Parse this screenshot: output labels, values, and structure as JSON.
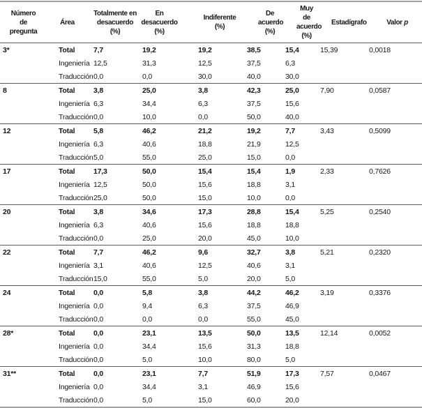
{
  "table": {
    "headers": {
      "question": "Número\nde\npregunta",
      "area": "Área",
      "cols": [
        "Totalmente en\ndesacuerdo\n(%)",
        "En\ndesacuerdo\n(%)",
        "Indiferente\n(%)",
        "De acuerdo\n(%)",
        "Muy de\nacuerdo\n(%)"
      ],
      "statistic": "Estadígrafo",
      "p_prefix": "Valor ",
      "p_symbol": "p"
    },
    "groups": [
      {
        "question": "3*",
        "rows": [
          {
            "area": "Total",
            "values": [
              "7,7",
              "19,2",
              "19,2",
              "38,5",
              "15,4"
            ],
            "statistic": "15,39",
            "p_value": "0,0018"
          },
          {
            "area": "Ingeniería",
            "values": [
              "12,5",
              "31,3",
              "12,5",
              "37,5",
              "6,3"
            ]
          },
          {
            "area": "Traducción",
            "values": [
              "0,0",
              "0,0",
              "30,0",
              "40,0",
              "30,0"
            ]
          }
        ]
      },
      {
        "question": "8",
        "rows": [
          {
            "area": "Total",
            "values": [
              "3,8",
              "25,0",
              "3,8",
              "42,3",
              "25,0"
            ],
            "statistic": "7,90",
            "p_value": "0,0587"
          },
          {
            "area": "Ingeniería",
            "values": [
              "6,3",
              "34,4",
              "6,3",
              "37,5",
              "15,6"
            ]
          },
          {
            "area": "Traducción",
            "values": [
              "0,0",
              "10,0",
              "0,0",
              "50,0",
              "40,0"
            ]
          }
        ]
      },
      {
        "question": "12",
        "rows": [
          {
            "area": "Total",
            "values": [
              "5,8",
              "46,2",
              "21,2",
              "19,2",
              "7,7"
            ],
            "statistic": "3,43",
            "p_value": "0,5099"
          },
          {
            "area": "Ingeniería",
            "values": [
              "6,3",
              "40,6",
              "18,8",
              "21,9",
              "12,5"
            ]
          },
          {
            "area": "Traducción",
            "values": [
              "5,0",
              "55,0",
              "25,0",
              "15,0",
              "0,0"
            ]
          }
        ]
      },
      {
        "question": "17",
        "rows": [
          {
            "area": "Total",
            "values": [
              "17,3",
              "50,0",
              "15,4",
              "15,4",
              "1,9"
            ],
            "statistic": "2,33",
            "p_value": "0,7626"
          },
          {
            "area": "Ingeniería",
            "values": [
              "12,5",
              "50,0",
              "15,6",
              "18,8",
              "3,1"
            ]
          },
          {
            "area": "Traducción",
            "values": [
              "25,0",
              "50,0",
              "15,0",
              "10,0",
              "0,0"
            ]
          }
        ]
      },
      {
        "question": "20",
        "rows": [
          {
            "area": "Total",
            "values": [
              "3,8",
              "34,6",
              "17,3",
              "28,8",
              "15,4"
            ],
            "statistic": "5,25",
            "p_value": "0,2540"
          },
          {
            "area": "Ingeniería",
            "values": [
              "6,3",
              "40,6",
              "15,6",
              "18,8",
              "18,8"
            ]
          },
          {
            "area": "Traducción",
            "values": [
              "0,0",
              "25,0",
              "20,0",
              "45,0",
              "10,0"
            ]
          }
        ]
      },
      {
        "question": "22",
        "rows": [
          {
            "area": "Total",
            "values": [
              "7,7",
              "46,2",
              "9,6",
              "32,7",
              "3,8"
            ],
            "statistic": "5,21",
            "p_value": "0,2320"
          },
          {
            "area": "Ingeniería",
            "values": [
              "3,1",
              "40,6",
              "12,5",
              "40,6",
              "3,1"
            ]
          },
          {
            "area": "Traducción",
            "values": [
              "15,0",
              "55,0",
              "5,0",
              "20,0",
              "5,0"
            ]
          }
        ]
      },
      {
        "question": "24",
        "rows": [
          {
            "area": "Total",
            "values": [
              "0,0",
              "5,8",
              "3,8",
              "44,2",
              "46,2"
            ],
            "statistic": "3,19",
            "p_value": "0,3376"
          },
          {
            "area": "Ingeniería",
            "values": [
              "0,0",
              "9,4",
              "6,3",
              "37,5",
              "46,9"
            ]
          },
          {
            "area": "Traducción",
            "values": [
              "0,0",
              "0,0",
              "0,0",
              "55,0",
              "45,0"
            ]
          }
        ]
      },
      {
        "question": "28*",
        "rows": [
          {
            "area": "Total",
            "values": [
              "0,0",
              "23,1",
              "13,5",
              "50,0",
              "13,5"
            ],
            "statistic": "12,14",
            "p_value": "0,0052"
          },
          {
            "area": "Ingeniería",
            "values": [
              "0,0",
              "34,4",
              "15,6",
              "31,3",
              "18,8"
            ]
          },
          {
            "area": "Traducción",
            "values": [
              "0,0",
              "5,0",
              "10,0",
              "80,0",
              "5,0"
            ]
          }
        ]
      },
      {
        "question": "31**",
        "rows": [
          {
            "area": "Total",
            "values": [
              "0,0",
              "23,1",
              "7,7",
              "51,9",
              "17,3"
            ],
            "statistic": "7,57",
            "p_value": "0,0467"
          },
          {
            "area": "Ingeniería",
            "values": [
              "0,0",
              "34,4",
              "3,1",
              "46,9",
              "15,6"
            ]
          },
          {
            "area": "Traducción",
            "values": [
              "0,0",
              "5,0",
              "15,0",
              "60,0",
              "20,0"
            ]
          }
        ]
      }
    ]
  }
}
